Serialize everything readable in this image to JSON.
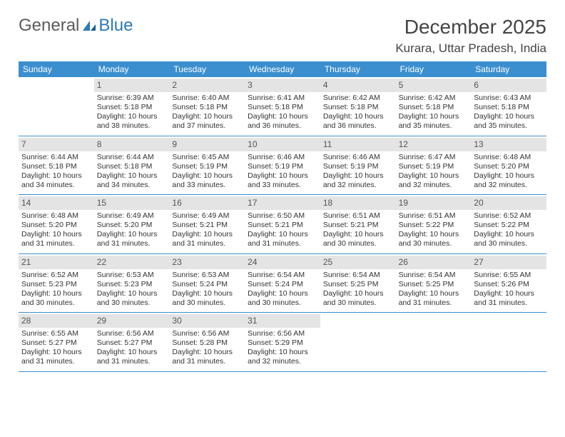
{
  "logo": {
    "text1": "General",
    "text2": "Blue"
  },
  "title": "December 2025",
  "location": "Kurara, Uttar Pradesh, India",
  "colors": {
    "header_bg": "#3b8fcf",
    "header_fg": "#ffffff",
    "daynum_bg": "#e4e4e4",
    "border": "#3b8fcf",
    "text": "#333333"
  },
  "dow": [
    "Sunday",
    "Monday",
    "Tuesday",
    "Wednesday",
    "Thursday",
    "Friday",
    "Saturday"
  ],
  "weeks": [
    [
      null,
      {
        "n": "1",
        "sr": "6:39 AM",
        "ss": "5:18 PM",
        "dl": "10 hours and 38 minutes."
      },
      {
        "n": "2",
        "sr": "6:40 AM",
        "ss": "5:18 PM",
        "dl": "10 hours and 37 minutes."
      },
      {
        "n": "3",
        "sr": "6:41 AM",
        "ss": "5:18 PM",
        "dl": "10 hours and 36 minutes."
      },
      {
        "n": "4",
        "sr": "6:42 AM",
        "ss": "5:18 PM",
        "dl": "10 hours and 36 minutes."
      },
      {
        "n": "5",
        "sr": "6:42 AM",
        "ss": "5:18 PM",
        "dl": "10 hours and 35 minutes."
      },
      {
        "n": "6",
        "sr": "6:43 AM",
        "ss": "5:18 PM",
        "dl": "10 hours and 35 minutes."
      }
    ],
    [
      {
        "n": "7",
        "sr": "6:44 AM",
        "ss": "5:18 PM",
        "dl": "10 hours and 34 minutes."
      },
      {
        "n": "8",
        "sr": "6:44 AM",
        "ss": "5:18 PM",
        "dl": "10 hours and 34 minutes."
      },
      {
        "n": "9",
        "sr": "6:45 AM",
        "ss": "5:19 PM",
        "dl": "10 hours and 33 minutes."
      },
      {
        "n": "10",
        "sr": "6:46 AM",
        "ss": "5:19 PM",
        "dl": "10 hours and 33 minutes."
      },
      {
        "n": "11",
        "sr": "6:46 AM",
        "ss": "5:19 PM",
        "dl": "10 hours and 32 minutes."
      },
      {
        "n": "12",
        "sr": "6:47 AM",
        "ss": "5:19 PM",
        "dl": "10 hours and 32 minutes."
      },
      {
        "n": "13",
        "sr": "6:48 AM",
        "ss": "5:20 PM",
        "dl": "10 hours and 32 minutes."
      }
    ],
    [
      {
        "n": "14",
        "sr": "6:48 AM",
        "ss": "5:20 PM",
        "dl": "10 hours and 31 minutes."
      },
      {
        "n": "15",
        "sr": "6:49 AM",
        "ss": "5:20 PM",
        "dl": "10 hours and 31 minutes."
      },
      {
        "n": "16",
        "sr": "6:49 AM",
        "ss": "5:21 PM",
        "dl": "10 hours and 31 minutes."
      },
      {
        "n": "17",
        "sr": "6:50 AM",
        "ss": "5:21 PM",
        "dl": "10 hours and 31 minutes."
      },
      {
        "n": "18",
        "sr": "6:51 AM",
        "ss": "5:21 PM",
        "dl": "10 hours and 30 minutes."
      },
      {
        "n": "19",
        "sr": "6:51 AM",
        "ss": "5:22 PM",
        "dl": "10 hours and 30 minutes."
      },
      {
        "n": "20",
        "sr": "6:52 AM",
        "ss": "5:22 PM",
        "dl": "10 hours and 30 minutes."
      }
    ],
    [
      {
        "n": "21",
        "sr": "6:52 AM",
        "ss": "5:23 PM",
        "dl": "10 hours and 30 minutes."
      },
      {
        "n": "22",
        "sr": "6:53 AM",
        "ss": "5:23 PM",
        "dl": "10 hours and 30 minutes."
      },
      {
        "n": "23",
        "sr": "6:53 AM",
        "ss": "5:24 PM",
        "dl": "10 hours and 30 minutes."
      },
      {
        "n": "24",
        "sr": "6:54 AM",
        "ss": "5:24 PM",
        "dl": "10 hours and 30 minutes."
      },
      {
        "n": "25",
        "sr": "6:54 AM",
        "ss": "5:25 PM",
        "dl": "10 hours and 30 minutes."
      },
      {
        "n": "26",
        "sr": "6:54 AM",
        "ss": "5:25 PM",
        "dl": "10 hours and 31 minutes."
      },
      {
        "n": "27",
        "sr": "6:55 AM",
        "ss": "5:26 PM",
        "dl": "10 hours and 31 minutes."
      }
    ],
    [
      {
        "n": "28",
        "sr": "6:55 AM",
        "ss": "5:27 PM",
        "dl": "10 hours and 31 minutes."
      },
      {
        "n": "29",
        "sr": "6:56 AM",
        "ss": "5:27 PM",
        "dl": "10 hours and 31 minutes."
      },
      {
        "n": "30",
        "sr": "6:56 AM",
        "ss": "5:28 PM",
        "dl": "10 hours and 31 minutes."
      },
      {
        "n": "31",
        "sr": "6:56 AM",
        "ss": "5:29 PM",
        "dl": "10 hours and 32 minutes."
      },
      null,
      null,
      null
    ]
  ],
  "labels": {
    "sunrise": "Sunrise: ",
    "sunset": "Sunset: ",
    "daylight": "Daylight: "
  }
}
